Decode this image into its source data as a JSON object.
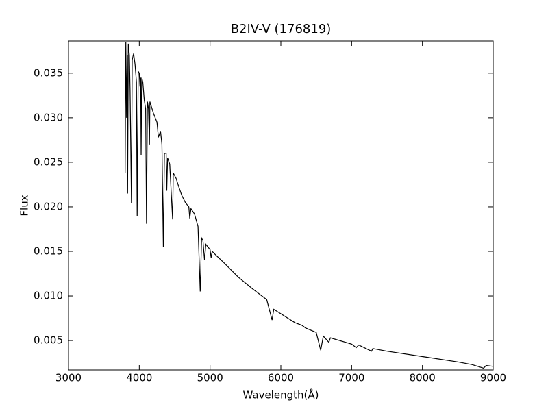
{
  "chart_data": {
    "type": "line",
    "title": "B2IV-V (176819)",
    "xlabel": "Wavelength(Å)",
    "ylabel": "Flux",
    "x": [
      3800,
      3810,
      3820,
      3830,
      3835,
      3845,
      3860,
      3870,
      3889,
      3900,
      3920,
      3940,
      3960,
      3970,
      3985,
      4000,
      4009,
      4020,
      4026,
      4035,
      4050,
      4070,
      4090,
      4102,
      4115,
      4130,
      4144,
      4150,
      4200,
      4250,
      4270,
      4300,
      4320,
      4340,
      4355,
      4380,
      4388,
      4400,
      4430,
      4471,
      4480,
      4520,
      4560,
      4600,
      4650,
      4700,
      4713,
      4730,
      4780,
      4830,
      4861,
      4880,
      4900,
      4922,
      4940,
      5000,
      5015,
      5030,
      5080,
      5200,
      5400,
      5600,
      5800,
      5876,
      5900,
      6000,
      6200,
      6300,
      6350,
      6500,
      6563,
      6600,
      6678,
      6700,
      7000,
      7065,
      7100,
      7281,
      7300,
      7500,
      8000,
      8500,
      8700,
      8865,
      8900,
      9000
    ],
    "series": [
      {
        "name": "Flux",
        "color": "#000000",
        "values": [
          0.0238,
          0.0385,
          0.03,
          0.037,
          0.0215,
          0.0383,
          0.037,
          0.033,
          0.0204,
          0.0365,
          0.0372,
          0.036,
          0.034,
          0.019,
          0.0352,
          0.035,
          0.0335,
          0.0345,
          0.0258,
          0.0345,
          0.034,
          0.032,
          0.031,
          0.0181,
          0.0318,
          0.031,
          0.027,
          0.0318,
          0.0305,
          0.0295,
          0.0278,
          0.0285,
          0.027,
          0.0155,
          0.026,
          0.026,
          0.0218,
          0.0255,
          0.0248,
          0.0186,
          0.0238,
          0.0232,
          0.0222,
          0.0213,
          0.0205,
          0.02,
          0.0187,
          0.0198,
          0.0192,
          0.0178,
          0.0105,
          0.0165,
          0.0162,
          0.014,
          0.0158,
          0.0152,
          0.0143,
          0.015,
          0.0146,
          0.0137,
          0.0121,
          0.0108,
          0.0096,
          0.0073,
          0.0085,
          0.008,
          0.007,
          0.0067,
          0.0064,
          0.0059,
          0.0039,
          0.0055,
          0.0048,
          0.0053,
          0.0046,
          0.0042,
          0.0045,
          0.0038,
          0.0041,
          0.0038,
          0.0032,
          0.0026,
          0.0023,
          0.0019,
          0.0022,
          0.0021
        ]
      }
    ],
    "xlim": [
      3000,
      9000
    ],
    "xticks": [
      3000,
      4000,
      5000,
      6000,
      7000,
      8000,
      9000
    ],
    "ylim": [
      0.0017,
      0.0386
    ],
    "yticks": [
      0.005,
      {
        "value": 0.01,
        "label": "0.010"
      },
      0.015,
      {
        "value": 0.02,
        "label": "0.020"
      },
      0.025,
      {
        "value": 0.03,
        "label": "0.030"
      },
      0.035
    ]
  }
}
